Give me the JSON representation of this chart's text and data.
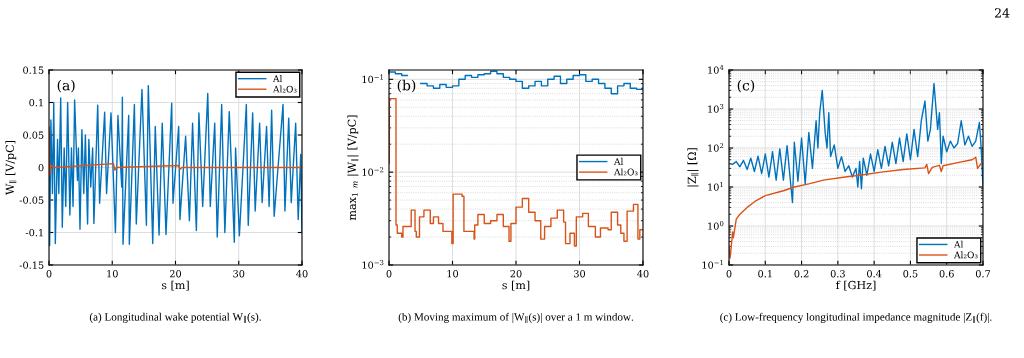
{
  "chart_data": [
    {
      "type": "line",
      "xlabel": "s [m]",
      "ylabel": "W$_{∥}$ [V/pC]",
      "annotations": [
        "(a)",
        "(a) Longitudinal wake potential W$_{∥}$(s)."
      ],
      "xlim": [
        0,
        40
      ],
      "ylim": [
        -0.15,
        0.15
      ],
      "xticks": [
        0,
        10,
        20,
        30,
        40
      ],
      "yticks": [
        -0.15,
        -0.1,
        -0.05,
        0,
        0.05,
        0.1,
        0.15
      ],
      "grid": true,
      "legend": "top right",
      "series": [
        {
          "name": "Al",
          "color": "#0072bd",
          "x": [
            0,
            0.1,
            0.3,
            0.55,
            0.75,
            1.0,
            1.35,
            1.55,
            1.85,
            2.1,
            2.4,
            2.65,
            2.95,
            3.3,
            3.55,
            3.8,
            4.05,
            4.5,
            4.65,
            4.9,
            5.2,
            5.5,
            5.75,
            6.1,
            6.3,
            6.6,
            6.9,
            7.1,
            7.7,
            8.0,
            8.8,
            9.1,
            9.8,
            10.5,
            10.9,
            11.5,
            11.6,
            11.7,
            12.6,
            12.7,
            13.5,
            13.8,
            14.7,
            15.4,
            15.7,
            16.4,
            16.8,
            17.4,
            17.9,
            18.5,
            19.4,
            19.6,
            20.5,
            20.7,
            21.6,
            22.2,
            22.7,
            23.3,
            23.7,
            24.3,
            25.1,
            25.5,
            26.2,
            26.6,
            27.3,
            27.8,
            28.5,
            29.3,
            29.5,
            30.1,
            31.2,
            31.5,
            32.2,
            32.6,
            33.3,
            33.7,
            34.4,
            34.8,
            35.2,
            35.6,
            37.0,
            37.3,
            37.9,
            38.3,
            39.0,
            39.4,
            39.8,
            40
          ],
          "values": [
            0,
            -0.12,
            0.073,
            -0.04,
            0.1,
            -0.117,
            0.043,
            -0.04,
            0.107,
            -0.092,
            0.03,
            -0.06,
            0.1,
            -0.073,
            0.03,
            -0.06,
            0.104,
            -0.02,
            0.03,
            -0.095,
            0.058,
            -0.04,
            0.05,
            -0.087,
            0.043,
            -0.03,
            0.03,
            -0.086,
            0.096,
            -0.055,
            0.085,
            -0.04,
            0.084,
            -0.1,
            0.08,
            -0.03,
            0.108,
            -0.118,
            0.08,
            -0.118,
            0.097,
            -0.087,
            0.12,
            -0.089,
            0.126,
            -0.117,
            0.063,
            -0.104,
            0.068,
            -0.103,
            0.099,
            -0.055,
            0.063,
            -0.08,
            0.048,
            -0.082,
            0.068,
            -0.097,
            0.084,
            -0.06,
            0.114,
            -0.06,
            0.068,
            -0.107,
            0.097,
            -0.1,
            0.086,
            -0.115,
            0.03,
            -0.105,
            0.097,
            -0.089,
            0.084,
            -0.067,
            0.068,
            -0.054,
            0.063,
            -0.06,
            0.088,
            -0.075,
            0.097,
            -0.067,
            0.076,
            -0.054,
            0.068,
            -0.08,
            0.02,
            -0.1
          ]
        },
        {
          "name": "Al₂O₃",
          "color": "#d95319",
          "x": [
            0,
            0.05,
            0.1,
            0.3,
            1,
            10.2,
            10.4,
            10.6,
            20.5,
            20.7,
            21,
            40
          ],
          "values": [
            0,
            0.062,
            -0.012,
            0.003,
            0,
            0.006,
            -0.004,
            0,
            0.003,
            -0.003,
            0,
            0
          ]
        }
      ]
    },
    {
      "type": "step",
      "xlabel": "s [m]",
      "ylabel": "max$_{1}$ $_{m}$ |W$_{∥}$| [V/pC]",
      "annotations": [
        "(b)",
        "(b) Moving maximum of |W$_{∥}$(s)| over a 1 m window."
      ],
      "xlim": [
        0,
        40
      ],
      "ylim": [
        0.001,
        0.126
      ],
      "xticks": [
        0,
        10,
        20,
        30,
        40
      ],
      "yticks": [
        {
          "value": 0.001,
          "label": "10$^{−3}$"
        },
        {
          "value": 0.01,
          "label": "10$^{−2}$"
        },
        {
          "value": 0.1,
          "label": "10$^{−1}$"
        }
      ],
      "log": "y",
      "grid": true,
      "legend": "right",
      "series": [
        {
          "name": "Al",
          "color": "#0072bd",
          "x": [
            0,
            1,
            2,
            2.9,
            5,
            6,
            7,
            8,
            9,
            10,
            11,
            12,
            13,
            14,
            15,
            16,
            17,
            18,
            19,
            20,
            21,
            22,
            23,
            24,
            25,
            26,
            27,
            28,
            29,
            30,
            31,
            32,
            33,
            34,
            35,
            36,
            37,
            38,
            39,
            40
          ],
          "values": [
            0.12,
            0.115,
            0.11,
            null,
            0.09,
            0.085,
            0.08,
            0.088,
            0.082,
            0.085,
            0.1,
            0.11,
            0.105,
            0.112,
            0.115,
            0.122,
            0.115,
            0.105,
            0.1,
            0.095,
            0.08,
            0.085,
            0.095,
            0.085,
            0.1,
            0.108,
            0.09,
            0.1,
            0.11,
            0.112,
            0.095,
            0.1,
            0.09,
            0.08,
            0.07,
            0.085,
            0.09,
            0.08,
            0.078,
            0.08
          ]
        },
        {
          "name": "Al₂O₃",
          "color": "#d95319",
          "x": [
            0,
            0.05,
            1.1,
            1.3,
            2.0,
            2.2,
            3.5,
            4.1,
            4.3,
            4.8,
            5.5,
            6.5,
            7.0,
            7.8,
            8.5,
            9.9,
            10.1,
            11.5,
            11.8,
            13.4,
            13.5,
            14.0,
            15.0,
            16,
            17,
            18,
            18.9,
            19.2,
            20.0,
            21.0,
            22.0,
            23.0,
            23.9,
            24.5,
            25.5,
            26.5,
            27.5,
            27.8,
            28.5,
            29.2,
            29.5,
            30.5,
            31.4,
            32.5,
            33.3,
            34.5,
            35.0,
            36.0,
            36.5,
            37.0,
            37.5,
            38.5,
            39.2,
            39.5,
            40
          ],
          "values": [
            0.0125,
            0.062,
            0.0027,
            0.0022,
            0.002,
            0.0026,
            0.0039,
            0.0023,
            0.002,
            0.0033,
            0.0039,
            0.0028,
            0.0033,
            0.0028,
            0.0023,
            0.0017,
            0.0058,
            0.0055,
            0.0023,
            0.0019,
            0.0027,
            0.0035,
            0.0028,
            0.003,
            0.0035,
            0.0026,
            0.0018,
            0.0028,
            0.0042,
            0.0052,
            0.0037,
            0.003,
            0.0019,
            0.0026,
            0.0032,
            0.0039,
            0.0029,
            0.0017,
            0.0022,
            0.0016,
            0.0033,
            0.0036,
            0.0026,
            0.002,
            0.0025,
            0.0024,
            0.0037,
            0.0027,
            0.0022,
            0.0018,
            0.0038,
            0.0045,
            0.0019,
            0.0024,
            0.0024
          ]
        }
      ]
    },
    {
      "type": "line",
      "xlabel": "f [GHz]",
      "ylabel": "|Z$_{∥}$| [Ω]",
      "annotations": [
        "(c)",
        "(c) Low-frequency longitudinal impedance magnitude |Z$_{∥}$(f)|.",
        "24"
      ],
      "xlim": [
        0,
        0.7
      ],
      "ylim": [
        0.1,
        10000
      ],
      "xticks": [
        0,
        0.1,
        0.2,
        0.3,
        0.4,
        0.5,
        0.6,
        0.7
      ],
      "yticks": [
        {
          "value": 0.1,
          "label": "10$^{−1}$"
        },
        {
          "value": 1,
          "label": "10$^{0}$"
        },
        {
          "value": 10,
          "label": "10$^{1}$"
        },
        {
          "value": 100,
          "label": "10$^{2}$"
        },
        {
          "value": 1000,
          "label": "10$^{3}$"
        },
        {
          "value": 10000,
          "label": "10$^{4}$"
        }
      ],
      "log": "y",
      "grid": true,
      "legend": "bottom right",
      "series": [
        {
          "name": "Al",
          "color": "#0072bd",
          "x": [
            0,
            0.01,
            0.02,
            0.03,
            0.04,
            0.05,
            0.06,
            0.07,
            0.08,
            0.09,
            0.1,
            0.11,
            0.12,
            0.13,
            0.14,
            0.15,
            0.16,
            0.17,
            0.175,
            0.18,
            0.19,
            0.2,
            0.21,
            0.22,
            0.23,
            0.24,
            0.245,
            0.25,
            0.257,
            0.265,
            0.27,
            0.275,
            0.28,
            0.29,
            0.3,
            0.31,
            0.32,
            0.33,
            0.34,
            0.35,
            0.355,
            0.36,
            0.365,
            0.37,
            0.38,
            0.39,
            0.4,
            0.41,
            0.42,
            0.43,
            0.44,
            0.45,
            0.46,
            0.47,
            0.48,
            0.49,
            0.5,
            0.51,
            0.52,
            0.53,
            0.54,
            0.548,
            0.555,
            0.565,
            0.575,
            0.58,
            0.585,
            0.59,
            0.6,
            0.61,
            0.62,
            0.63,
            0.64,
            0.65,
            0.66,
            0.67,
            0.68,
            0.69,
            0.695,
            0.7
          ],
          "values": [
            40,
            38,
            45,
            33,
            48,
            28,
            55,
            25,
            62,
            22,
            70,
            18,
            80,
            15,
            95,
            15,
            115,
            12,
            4,
            140,
            14,
            180,
            12,
            250,
            30,
            500,
            100,
            800,
            3000,
            250,
            100,
            800,
            60,
            120,
            30,
            60,
            25,
            35,
            18,
            30,
            10,
            45,
            9,
            55,
            20,
            70,
            25,
            90,
            30,
            110,
            35,
            140,
            40,
            180,
            45,
            230,
            50,
            300,
            60,
            500,
            1600,
            150,
            300,
            4500,
            300,
            800,
            40,
            200,
            80,
            150,
            100,
            130,
            500,
            120,
            200,
            110,
            150,
            450,
            100,
            10
          ]
        },
        {
          "name": "Al₂O₃",
          "color": "#d95319",
          "x": [
            0,
            0.003,
            0.01,
            0.012,
            0.02,
            0.03,
            0.05,
            0.075,
            0.1,
            0.15,
            0.18,
            0.22,
            0.26,
            0.32,
            0.36,
            0.42,
            0.48,
            0.54,
            0.545,
            0.55,
            0.56,
            0.58,
            0.585,
            0.59,
            0.63,
            0.67,
            0.68,
            0.685,
            0.695,
            0.7
          ],
          "values": [
            0.3,
            0.15,
            0.7,
            0.5,
            1.5,
            2,
            3,
            4.5,
            6,
            8,
            10,
            12,
            15,
            18,
            20,
            24,
            28,
            31,
            38,
            22,
            32,
            36,
            25,
            35,
            42,
            50,
            58,
            30,
            40,
            42
          ]
        }
      ]
    }
  ]
}
